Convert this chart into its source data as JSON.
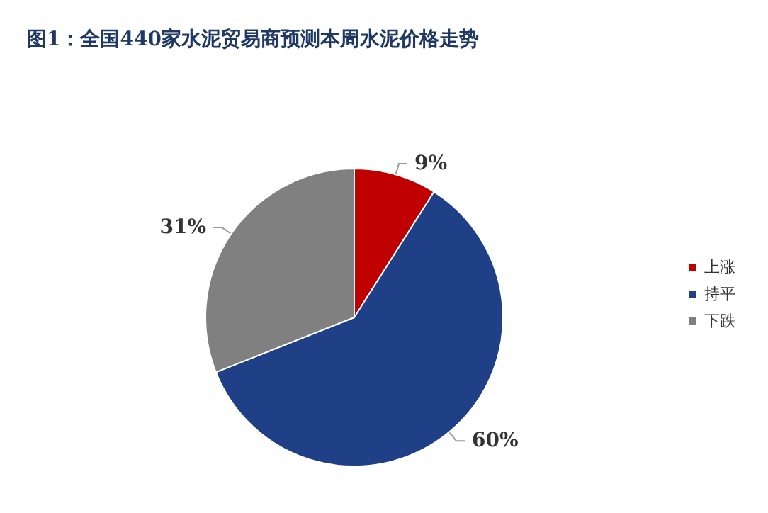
{
  "chart_data": {
    "type": "pie",
    "title": "图1：全国440家水泥贸易商预测本周水泥价格走势",
    "categories": [
      "上涨",
      "持平",
      "下跌"
    ],
    "values": [
      9,
      60,
      31
    ],
    "colors": [
      "#c00000",
      "#1f3f87",
      "#808080"
    ],
    "value_labels": [
      "9%",
      "60%",
      "31%"
    ],
    "legend": "right"
  }
}
